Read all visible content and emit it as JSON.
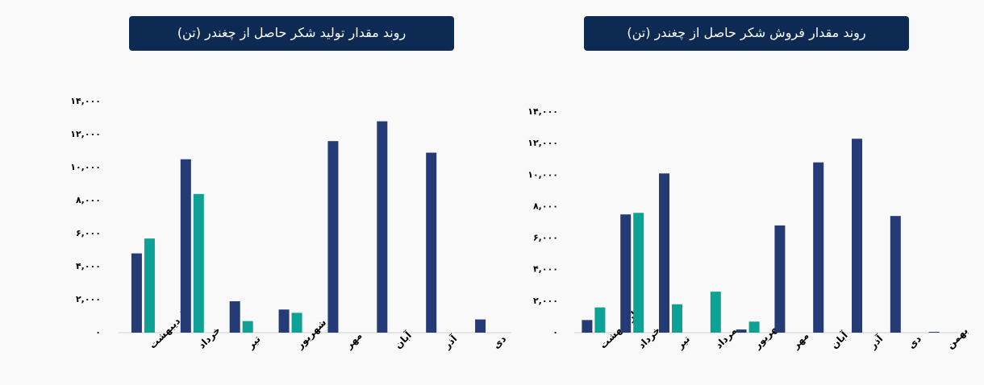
{
  "chart_data": [
    {
      "type": "bar",
      "title": "روند مقدار تولید شکر حاصل از چغندر (تن)",
      "categories": [
        "اردیبهشت",
        "خرداد",
        "تیر",
        "شهریور",
        "مهر",
        "آبان",
        "آذر",
        "دی"
      ],
      "series": [
        {
          "color": "#253b76",
          "values": [
            4800,
            10500,
            1900,
            1400,
            11600,
            12800,
            10900,
            800
          ]
        },
        {
          "color": "#0ea195",
          "values": [
            5700,
            8400,
            700,
            1200,
            null,
            null,
            null,
            null
          ]
        }
      ],
      "ylim": [
        0,
        14000
      ],
      "yticks": [
        {
          "value": 0,
          "label": "۰"
        },
        {
          "value": 2000,
          "label": "۲,۰۰۰"
        },
        {
          "value": 4000,
          "label": "۴,۰۰۰"
        },
        {
          "value": 6000,
          "label": "۶,۰۰۰"
        },
        {
          "value": 8000,
          "label": "۸,۰۰۰"
        },
        {
          "value": 10000,
          "label": "۱۰,۰۰۰"
        },
        {
          "value": 12000,
          "label": "۱۲,۰۰۰"
        },
        {
          "value": 14000,
          "label": "۱۴,۰۰۰"
        }
      ],
      "grid": false
    },
    {
      "type": "bar",
      "title": "روند مقدار فروش شکر حاصل از چغندر (تن)",
      "categories": [
        "اردیبهشت",
        "خرداد",
        "تیر",
        "مرداد",
        "شهریور",
        "مهر",
        "آبان",
        "آذر",
        "دی",
        "بهمن"
      ],
      "series": [
        {
          "color": "#253b76",
          "values": [
            800,
            7500,
            10100,
            null,
            200,
            6800,
            10800,
            12300,
            7400,
            50
          ]
        },
        {
          "color": "#0ea195",
          "values": [
            1600,
            7600,
            1800,
            2600,
            700,
            null,
            null,
            null,
            null,
            null
          ]
        }
      ],
      "ylim": [
        0,
        14000
      ],
      "yticks": [
        {
          "value": 0,
          "label": "۰"
        },
        {
          "value": 2000,
          "label": "۲,۰۰۰"
        },
        {
          "value": 4000,
          "label": "۴,۰۰۰"
        },
        {
          "value": 6000,
          "label": "۶,۰۰۰"
        },
        {
          "value": 8000,
          "label": "۸,۰۰۰"
        },
        {
          "value": 10000,
          "label": "۱۰,۰۰۰"
        },
        {
          "value": 12000,
          "label": "۱۲,۰۰۰"
        },
        {
          "value": 14000,
          "label": "۱۴,۰۰۰"
        }
      ],
      "grid": false
    }
  ]
}
